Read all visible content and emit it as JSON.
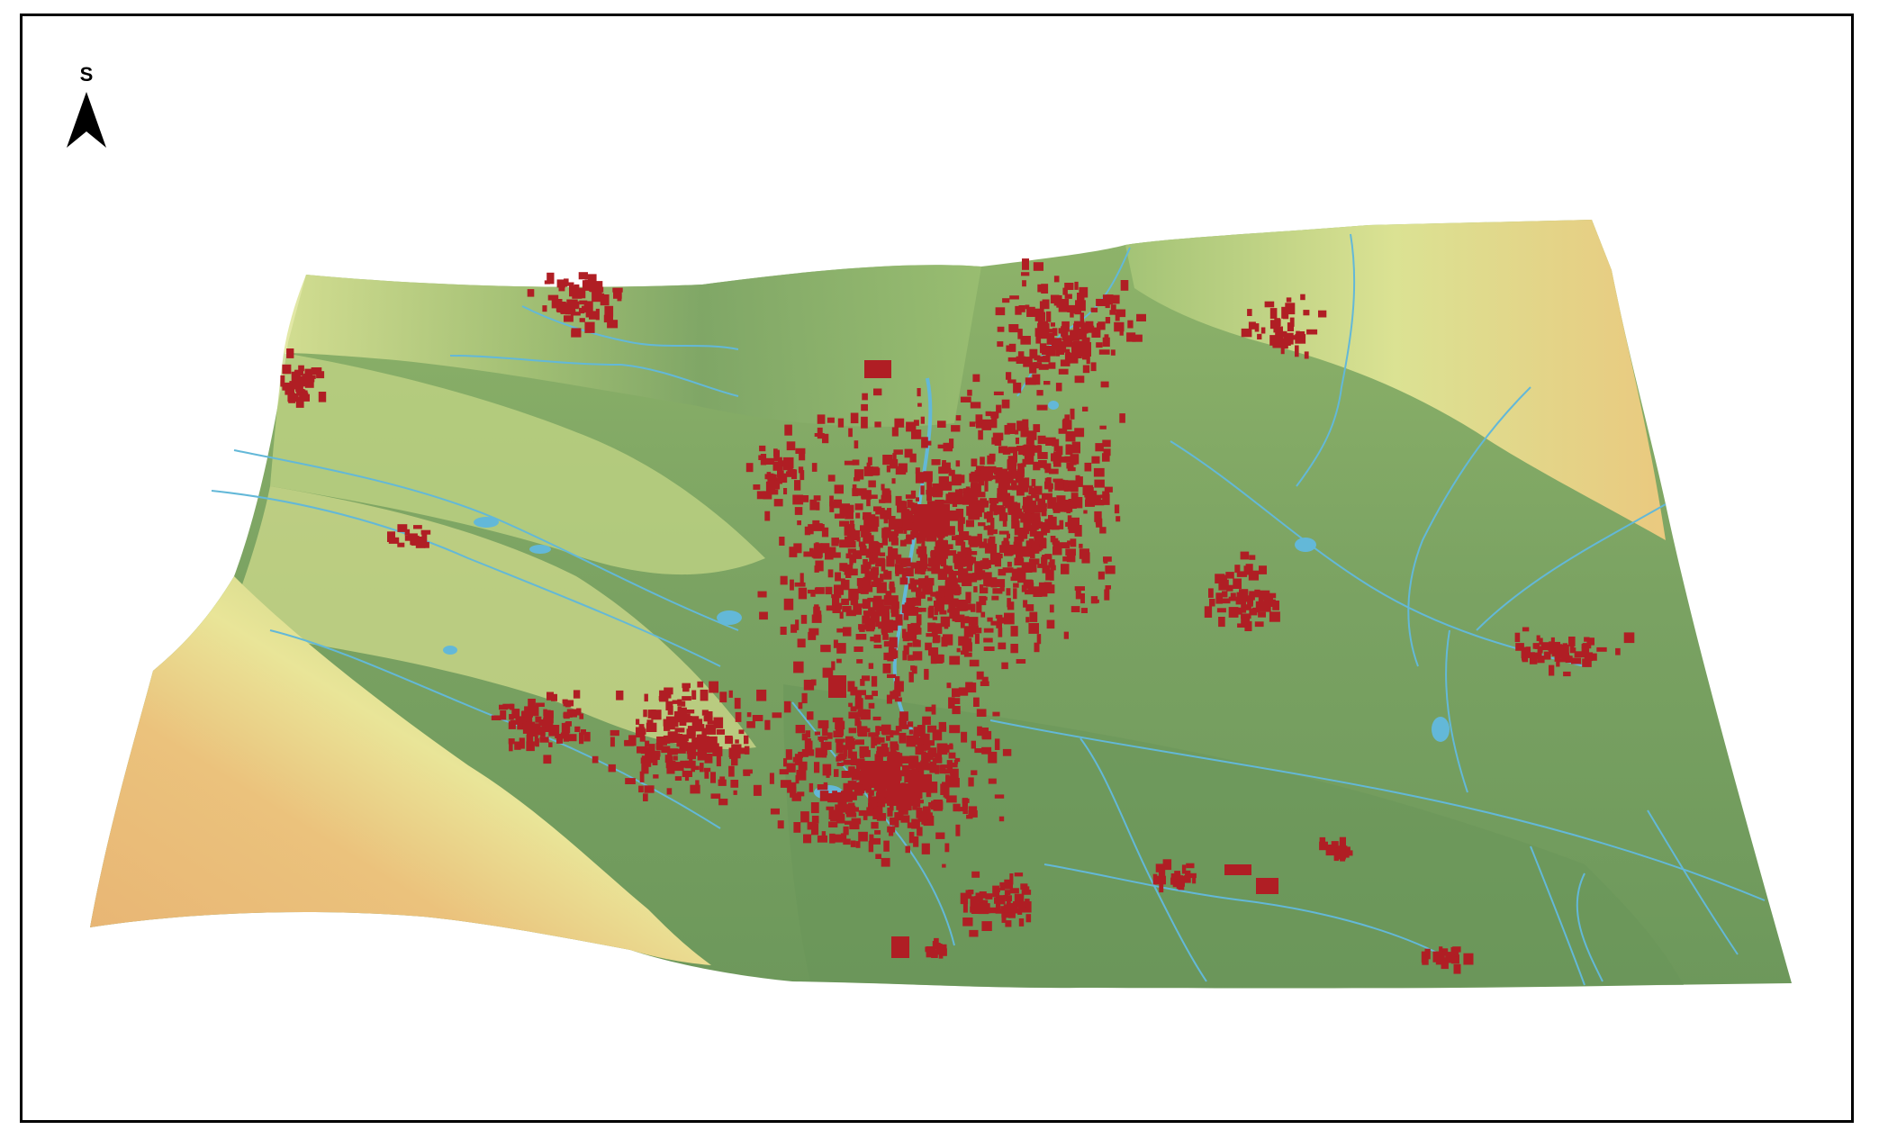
{
  "map": {
    "north_arrow_label": "S",
    "colors": {
      "terrain_low": "#6f9a5c",
      "terrain_mid": "#9fbd72",
      "terrain_plain": "#e7e79a",
      "terrain_high": "#e6b773",
      "buildings": "#b01e24",
      "water": "#63b8d8"
    },
    "icons": [
      "north-arrow-icon"
    ]
  }
}
